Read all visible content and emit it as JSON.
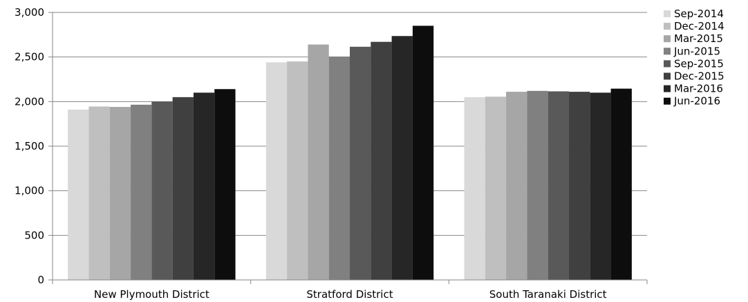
{
  "chart_data": {
    "type": "bar",
    "title": "",
    "xlabel": "",
    "ylabel": "",
    "ylim": [
      0,
      3000
    ],
    "yticks": [
      0,
      500,
      1000,
      1500,
      2000,
      2500,
      3000
    ],
    "ytick_labels": [
      "0",
      "500",
      "1,000",
      "1,500",
      "2,000",
      "2,500",
      "3,000"
    ],
    "grid": "horizontal",
    "legend_position": "right",
    "categories": [
      "New Plymouth District",
      "Stratford District",
      "South Taranaki District"
    ],
    "series": [
      {
        "name": "Sep-2014",
        "color": "#d9d9d9",
        "values": [
          1910,
          2440,
          2050
        ]
      },
      {
        "name": "Dec-2014",
        "color": "#bfbfbf",
        "values": [
          1945,
          2450,
          2055
        ]
      },
      {
        "name": "Mar-2015",
        "color": "#a6a6a6",
        "values": [
          1940,
          2640,
          2110
        ]
      },
      {
        "name": "Jun-2015",
        "color": "#808080",
        "values": [
          1965,
          2505,
          2120
        ]
      },
      {
        "name": "Sep-2015",
        "color": "#595959",
        "values": [
          2000,
          2615,
          2115
        ]
      },
      {
        "name": "Dec-2015",
        "color": "#404040",
        "values": [
          2050,
          2670,
          2110
        ]
      },
      {
        "name": "Mar-2016",
        "color": "#262626",
        "values": [
          2100,
          2735,
          2100
        ]
      },
      {
        "name": "Jun-2016",
        "color": "#0d0d0d",
        "values": [
          2140,
          2850,
          2145
        ]
      }
    ]
  }
}
